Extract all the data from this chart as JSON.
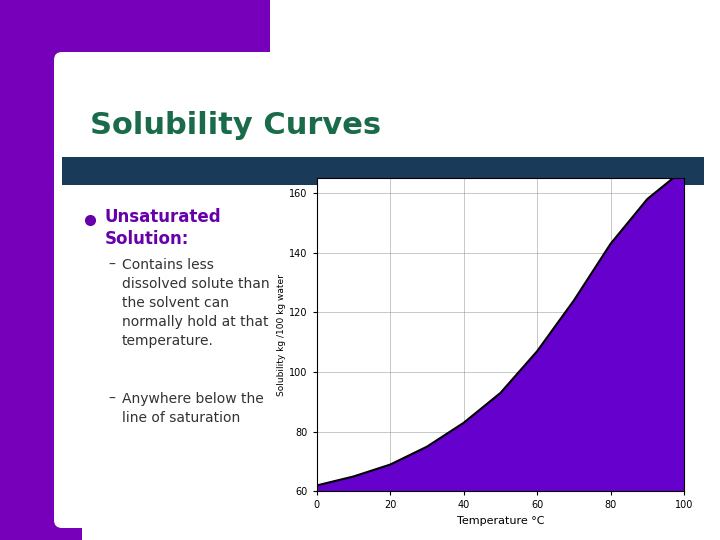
{
  "title": "Solubility Curves",
  "title_color": "#1a6b4a",
  "slide_bg": "#ffffff",
  "purple_bg": "#7700bb",
  "teal_bar_color": "#1a3a5a",
  "bullet_color": "#6600aa",
  "curve_x": [
    0,
    10,
    20,
    30,
    40,
    50,
    60,
    70,
    80,
    90,
    100
  ],
  "curve_y": [
    62,
    65,
    69,
    75,
    83,
    93,
    107,
    124,
    143,
    158,
    168
  ],
  "fill_color": "#6600cc",
  "curve_color": "#000000",
  "ylabel": "Solubility kg /100 kg water",
  "xlabel": "Temperature °C",
  "ylim": [
    60,
    165
  ],
  "xlim": [
    0,
    100
  ],
  "yticks": [
    60,
    80,
    100,
    120,
    140,
    160
  ],
  "xticks": [
    0,
    20,
    40,
    60,
    80,
    100
  ],
  "text_color": "#333333",
  "sub_text_color": "#444444"
}
